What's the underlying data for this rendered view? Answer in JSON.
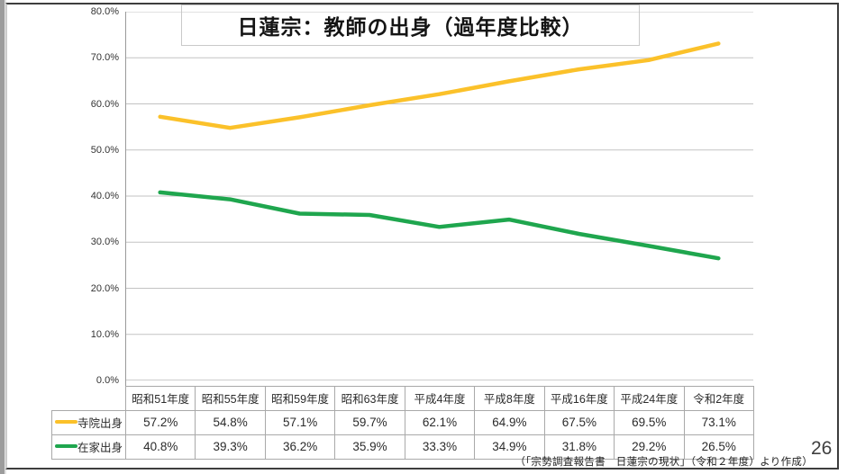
{
  "slide": {
    "source_note": "（「宗勢調査報告書　日蓮宗の現状」（令和２年度）より作成）",
    "page_number": "26"
  },
  "chart_data": {
    "type": "line",
    "title": "日蓮宗：教師の出身（過年度比較）",
    "categories": [
      "昭和51年度",
      "昭和55年度",
      "昭和59年度",
      "昭和63年度",
      "平成4年度",
      "平成8年度",
      "平成16年度",
      "平成24年度",
      "令和2年度"
    ],
    "series": [
      {
        "name": "寺院出身",
        "color": "#FBC12A",
        "values": [
          57.2,
          54.8,
          57.1,
          59.7,
          62.1,
          64.9,
          67.5,
          69.5,
          73.1
        ],
        "display_values": [
          "57.2%",
          "54.8%",
          "57.1%",
          "59.7%",
          "62.1%",
          "64.9%",
          "67.5%",
          "69.5%",
          "73.1%"
        ]
      },
      {
        "name": "在家出身",
        "color": "#1FA64E",
        "values": [
          40.8,
          39.3,
          36.2,
          35.9,
          33.3,
          34.9,
          31.8,
          29.2,
          26.5
        ],
        "display_values": [
          "40.8%",
          "39.3%",
          "36.2%",
          "35.9%",
          "33.3%",
          "34.9%",
          "31.8%",
          "29.2%",
          "26.5%"
        ]
      }
    ],
    "ylim": [
      0,
      80
    ],
    "ytick_step": 10,
    "ytick_labels_top_to_bottom": [
      "80.0%",
      "70.0%",
      "60.0%",
      "50.0%",
      "40.0%",
      "30.0%",
      "20.0%",
      "10.0%",
      "0.0%"
    ],
    "grid": true,
    "vertical_gridlines": false,
    "point_markers": false,
    "legend_position": "table-left-column",
    "colors": {
      "gridline": "#c3c3c3",
      "axis": "#9a9a9a",
      "table_border": "#a9a9a9"
    }
  }
}
